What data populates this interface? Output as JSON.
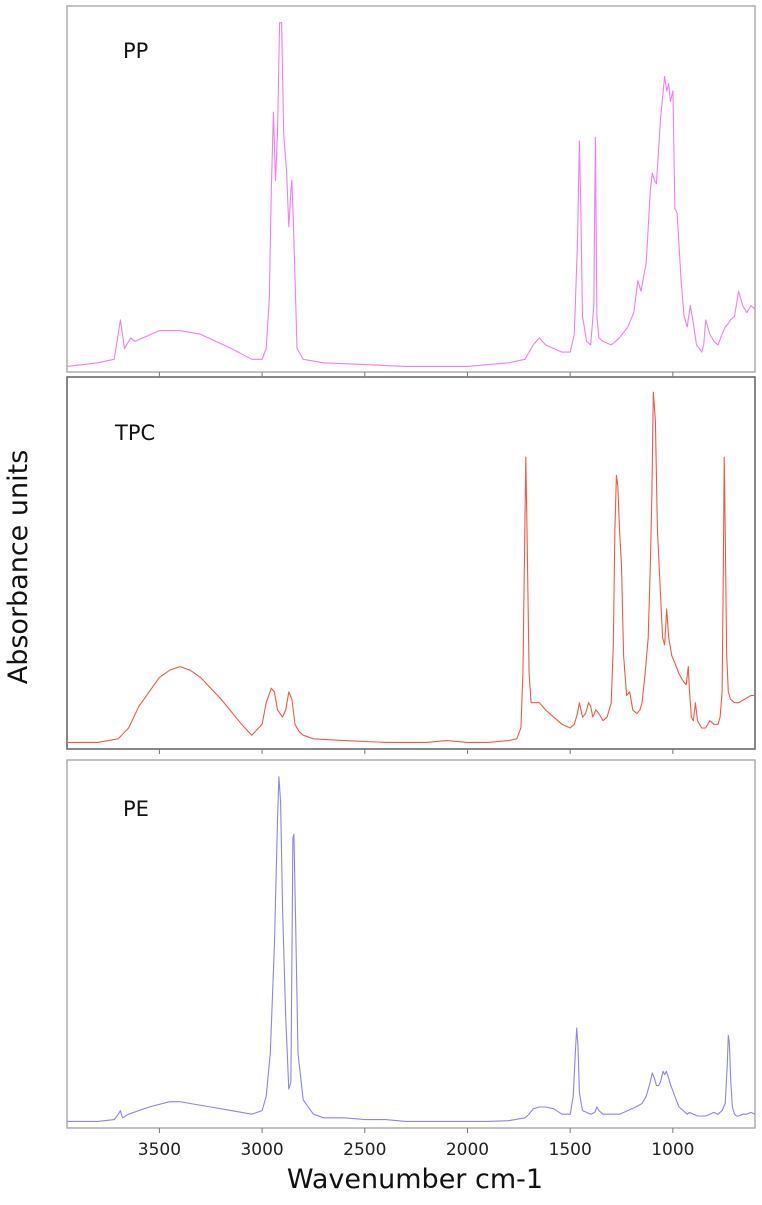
{
  "chart_data": [
    {
      "type": "line",
      "title": "PP",
      "color": "#f07ef0",
      "xlim": [
        3950,
        600
      ],
      "ylim": [
        0,
        1
      ],
      "grid": false,
      "x_reversed": true,
      "x": [
        3950,
        3800,
        3720,
        3690,
        3670,
        3640,
        3620,
        3500,
        3400,
        3300,
        3150,
        3050,
        3000,
        2980,
        2965,
        2955,
        2945,
        2935,
        2925,
        2915,
        2905,
        2895,
        2880,
        2870,
        2860,
        2855,
        2848,
        2838,
        2830,
        2800,
        2750,
        2700,
        2500,
        2300,
        2100,
        2000,
        1900,
        1800,
        1720,
        1680,
        1650,
        1620,
        1580,
        1540,
        1500,
        1480,
        1465,
        1455,
        1448,
        1440,
        1420,
        1400,
        1385,
        1377,
        1370,
        1360,
        1340,
        1300,
        1260,
        1220,
        1190,
        1170,
        1155,
        1130,
        1110,
        1100,
        1090,
        1080,
        1060,
        1040,
        1030,
        1020,
        1012,
        1000,
        990,
        980,
        970,
        960,
        945,
        930,
        915,
        900,
        885,
        870,
        860,
        850,
        840,
        820,
        800,
        780,
        760,
        745,
        730,
        720,
        700,
        680,
        660,
        640,
        620,
        600
      ],
      "y": [
        0.01,
        0.02,
        0.03,
        0.14,
        0.06,
        0.09,
        0.08,
        0.11,
        0.11,
        0.1,
        0.06,
        0.03,
        0.03,
        0.06,
        0.2,
        0.5,
        0.72,
        0.53,
        0.66,
        0.97,
        0.97,
        0.66,
        0.55,
        0.4,
        0.5,
        0.53,
        0.42,
        0.22,
        0.06,
        0.03,
        0.025,
        0.02,
        0.015,
        0.01,
        0.01,
        0.01,
        0.015,
        0.02,
        0.03,
        0.07,
        0.09,
        0.07,
        0.06,
        0.05,
        0.05,
        0.1,
        0.35,
        0.64,
        0.45,
        0.15,
        0.08,
        0.07,
        0.18,
        0.65,
        0.15,
        0.09,
        0.08,
        0.07,
        0.09,
        0.12,
        0.16,
        0.25,
        0.22,
        0.3,
        0.5,
        0.55,
        0.53,
        0.52,
        0.7,
        0.82,
        0.78,
        0.8,
        0.75,
        0.78,
        0.45,
        0.44,
        0.35,
        0.25,
        0.15,
        0.12,
        0.18,
        0.13,
        0.07,
        0.06,
        0.05,
        0.07,
        0.14,
        0.1,
        0.08,
        0.07,
        0.1,
        0.12,
        0.13,
        0.14,
        0.15,
        0.22,
        0.18,
        0.16,
        0.18,
        0.17
      ]
    },
    {
      "type": "line",
      "title": "TPC",
      "color": "#f05a44",
      "xlim": [
        3950,
        600
      ],
      "ylim": [
        0,
        1
      ],
      "grid": false,
      "x_reversed": true,
      "x": [
        3950,
        3800,
        3700,
        3650,
        3600,
        3500,
        3450,
        3400,
        3350,
        3300,
        3200,
        3100,
        3050,
        3000,
        2980,
        2955,
        2940,
        2925,
        2900,
        2885,
        2870,
        2855,
        2840,
        2820,
        2800,
        2750,
        2600,
        2400,
        2200,
        2100,
        2000,
        1900,
        1800,
        1760,
        1740,
        1730,
        1722,
        1716,
        1710,
        1700,
        1690,
        1650,
        1620,
        1580,
        1540,
        1500,
        1480,
        1465,
        1455,
        1440,
        1425,
        1410,
        1400,
        1390,
        1375,
        1360,
        1340,
        1320,
        1300,
        1290,
        1282,
        1275,
        1268,
        1260,
        1250,
        1240,
        1225,
        1210,
        1195,
        1175,
        1160,
        1150,
        1135,
        1120,
        1110,
        1102,
        1095,
        1085,
        1075,
        1060,
        1050,
        1040,
        1030,
        1020,
        1005,
        990,
        970,
        950,
        935,
        925,
        920,
        910,
        900,
        890,
        880,
        860,
        840,
        820,
        800,
        780,
        770,
        760,
        755,
        750,
        745,
        738,
        730,
        720,
        700,
        680,
        650,
        620,
        600
      ],
      "y": [
        0.01,
        0.01,
        0.02,
        0.05,
        0.11,
        0.19,
        0.21,
        0.22,
        0.21,
        0.19,
        0.13,
        0.06,
        0.03,
        0.06,
        0.12,
        0.16,
        0.15,
        0.1,
        0.08,
        0.1,
        0.15,
        0.13,
        0.06,
        0.04,
        0.03,
        0.02,
        0.015,
        0.01,
        0.01,
        0.015,
        0.01,
        0.01,
        0.015,
        0.02,
        0.05,
        0.2,
        0.55,
        0.8,
        0.6,
        0.2,
        0.12,
        0.12,
        0.1,
        0.08,
        0.06,
        0.05,
        0.06,
        0.09,
        0.12,
        0.08,
        0.09,
        0.12,
        0.11,
        0.08,
        0.1,
        0.09,
        0.07,
        0.08,
        0.12,
        0.28,
        0.6,
        0.75,
        0.72,
        0.6,
        0.5,
        0.25,
        0.14,
        0.15,
        0.1,
        0.09,
        0.1,
        0.12,
        0.2,
        0.3,
        0.5,
        0.7,
        0.98,
        0.9,
        0.6,
        0.42,
        0.3,
        0.28,
        0.38,
        0.3,
        0.25,
        0.23,
        0.2,
        0.18,
        0.17,
        0.22,
        0.16,
        0.08,
        0.07,
        0.12,
        0.07,
        0.05,
        0.05,
        0.07,
        0.06,
        0.06,
        0.08,
        0.15,
        0.45,
        0.8,
        0.6,
        0.25,
        0.15,
        0.13,
        0.12,
        0.12,
        0.13,
        0.14,
        0.14
      ]
    },
    {
      "type": "line",
      "title": "PE",
      "color": "#8c84f0",
      "xlim": [
        3950,
        600
      ],
      "ylim": [
        0,
        1
      ],
      "grid": false,
      "x_reversed": true,
      "x": [
        3950,
        3800,
        3720,
        3700,
        3690,
        3680,
        3650,
        3550,
        3450,
        3400,
        3350,
        3250,
        3150,
        3050,
        3000,
        2980,
        2960,
        2940,
        2925,
        2918,
        2910,
        2900,
        2885,
        2870,
        2860,
        2850,
        2845,
        2838,
        2825,
        2800,
        2750,
        2700,
        2600,
        2500,
        2400,
        2300,
        2200,
        2100,
        2000,
        1900,
        1800,
        1720,
        1700,
        1680,
        1650,
        1620,
        1580,
        1540,
        1500,
        1485,
        1475,
        1468,
        1462,
        1455,
        1440,
        1420,
        1400,
        1380,
        1370,
        1360,
        1340,
        1300,
        1260,
        1220,
        1180,
        1150,
        1130,
        1110,
        1100,
        1090,
        1080,
        1070,
        1060,
        1048,
        1040,
        1032,
        1020,
        1010,
        990,
        970,
        950,
        930,
        920,
        900,
        880,
        860,
        840,
        820,
        800,
        780,
        760,
        745,
        735,
        730,
        725,
        718,
        710,
        700,
        690,
        680,
        660,
        640,
        620,
        600
      ],
      "y": [
        0.01,
        0.01,
        0.015,
        0.03,
        0.04,
        0.02,
        0.03,
        0.05,
        0.065,
        0.065,
        0.06,
        0.05,
        0.04,
        0.03,
        0.04,
        0.08,
        0.2,
        0.5,
        0.85,
        0.97,
        0.9,
        0.6,
        0.3,
        0.1,
        0.12,
        0.8,
        0.81,
        0.6,
        0.2,
        0.07,
        0.03,
        0.02,
        0.02,
        0.015,
        0.015,
        0.01,
        0.01,
        0.01,
        0.01,
        0.01,
        0.012,
        0.02,
        0.03,
        0.045,
        0.05,
        0.05,
        0.045,
        0.03,
        0.03,
        0.08,
        0.2,
        0.27,
        0.22,
        0.09,
        0.04,
        0.035,
        0.03,
        0.035,
        0.05,
        0.04,
        0.03,
        0.03,
        0.03,
        0.04,
        0.05,
        0.06,
        0.08,
        0.12,
        0.145,
        0.13,
        0.11,
        0.11,
        0.12,
        0.15,
        0.14,
        0.15,
        0.13,
        0.11,
        0.08,
        0.05,
        0.04,
        0.03,
        0.035,
        0.03,
        0.025,
        0.025,
        0.025,
        0.03,
        0.035,
        0.03,
        0.04,
        0.06,
        0.17,
        0.25,
        0.23,
        0.12,
        0.05,
        0.03,
        0.025,
        0.025,
        0.03,
        0.03,
        0.035,
        0.03
      ]
    }
  ],
  "axes": {
    "xlabel": "Wavenumber cm-1",
    "ylabel": "Absorbance units",
    "xticks": [
      3500,
      3000,
      2500,
      2000,
      1500,
      1000
    ],
    "xtick_labels": [
      "3500",
      "3000",
      "2500",
      "2000",
      "1500",
      "1000"
    ]
  },
  "frame_colors": {
    "light": "#a9a9a9",
    "dark": "#555555"
  }
}
